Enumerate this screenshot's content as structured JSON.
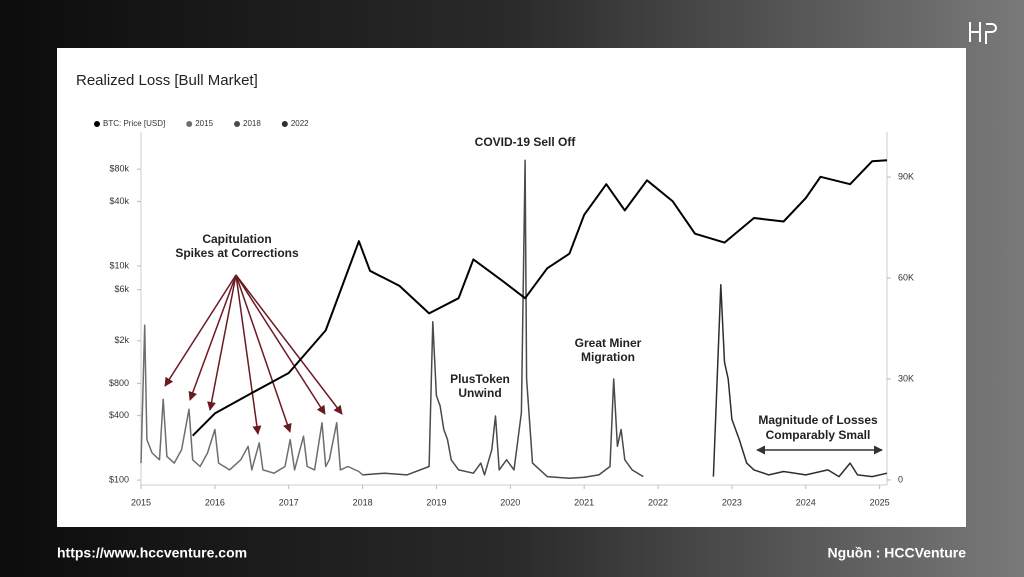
{
  "chart_data": {
    "type": "line",
    "title": "Realized Loss [Bull Market]",
    "xlim": [
      2015,
      2025.1
    ],
    "xticks": [
      2015,
      2016,
      2017,
      2018,
      2019,
      2020,
      2021,
      2022,
      2023,
      2024,
      2025
    ],
    "ylim": [
      90,
      178000
    ],
    "log_y": true,
    "yticks": [
      {
        "value": 100,
        "label": "$100"
      },
      {
        "value": 400,
        "label": "$400"
      },
      {
        "value": 800,
        "label": "$800"
      },
      {
        "value": 2000,
        "label": "$2k"
      },
      {
        "value": 6000,
        "label": "$6k"
      },
      {
        "value": 10000,
        "label": "$10k"
      },
      {
        "value": 40000,
        "label": "$40k"
      },
      {
        "value": 80000,
        "label": "$80k"
      }
    ],
    "y2lim": [
      -1500,
      103400
    ],
    "y2ticks": [
      0,
      {
        "value": 30000,
        "label": "30K"
      },
      {
        "value": 60000,
        "label": "60K"
      },
      {
        "value": 90000,
        "label": "90K"
      }
    ],
    "legend": "top-left",
    "series": [
      {
        "name": "BTC: Price [USD]",
        "color": "#000000",
        "x": [
          2015.7,
          2016.0,
          2016.5,
          2017.0,
          2017.5,
          2017.95,
          2018.1,
          2018.5,
          2018.9,
          2019.3,
          2019.5,
          2019.9,
          2020.2,
          2020.5,
          2020.8,
          2021.0,
          2021.3,
          2021.55,
          2021.85,
          2022.2,
          2022.5,
          2022.9,
          2023.3,
          2023.7,
          2024.0,
          2024.2,
          2024.6,
          2024.9,
          2025.1
        ],
        "values": [
          260,
          420,
          650,
          1000,
          2500,
          17000,
          9000,
          6500,
          3600,
          5000,
          11500,
          7200,
          5000,
          9500,
          13000,
          30000,
          58000,
          33000,
          63000,
          40000,
          20000,
          16500,
          28000,
          26000,
          43000,
          68000,
          58000,
          95000,
          97000
        ]
      },
      {
        "name": "2015",
        "color": "#6e6e6e",
        "axis": "y2",
        "x": [
          2015.0,
          2015.05,
          2015.08,
          2015.15,
          2015.25,
          2015.3,
          2015.35,
          2015.45,
          2015.55,
          2015.65,
          2015.7,
          2015.8,
          2015.9,
          2016.0,
          2016.05,
          2016.2,
          2016.35,
          2016.45,
          2016.5,
          2016.6,
          2016.65,
          2016.8,
          2016.95,
          2017.02,
          2017.08,
          2017.2,
          2017.25,
          2017.35,
          2017.45,
          2017.5,
          2017.55,
          2017.65,
          2017.7,
          2017.8,
          2017.95,
          2018.0
        ],
        "values": [
          5000,
          46000,
          12000,
          8000,
          6000,
          24000,
          7000,
          5000,
          9000,
          21000,
          6000,
          4000,
          8000,
          15000,
          5000,
          3000,
          6000,
          10000,
          3000,
          11000,
          3000,
          2000,
          4000,
          12000,
          3000,
          13000,
          4000,
          3000,
          17000,
          4000,
          6000,
          17000,
          3000,
          4000,
          2500,
          1500
        ]
      },
      {
        "name": "2018",
        "color": "#4a4a4a",
        "axis": "y2",
        "x": [
          2018.0,
          2018.3,
          2018.6,
          2018.9,
          2018.95,
          2019.0,
          2019.05,
          2019.1,
          2019.15,
          2019.2,
          2019.3,
          2019.5,
          2019.6,
          2019.65,
          2019.75,
          2019.8,
          2019.85,
          2019.95,
          2020.05,
          2020.15,
          2020.2,
          2020.22,
          2020.3,
          2020.5,
          2020.8,
          2021.0,
          2021.2,
          2021.35,
          2021.4,
          2021.45,
          2021.5,
          2021.55,
          2021.65,
          2021.8
        ],
        "values": [
          1500,
          2000,
          1500,
          4000,
          47000,
          25000,
          22000,
          15000,
          12000,
          6000,
          3000,
          2000,
          5000,
          1500,
          9000,
          19000,
          3000,
          6000,
          3000,
          20000,
          95000,
          30000,
          5000,
          1000,
          500,
          800,
          1500,
          4000,
          30000,
          10000,
          15000,
          6000,
          3000,
          1000
        ]
      },
      {
        "name": "2022",
        "color": "#2e2e2e",
        "axis": "y2",
        "x": [
          2022.75,
          2022.85,
          2022.9,
          2022.95,
          2023.0,
          2023.1,
          2023.2,
          2023.3,
          2023.5,
          2023.7,
          2024.0,
          2024.3,
          2024.45,
          2024.6,
          2024.7,
          2024.9,
          2025.1
        ],
        "values": [
          1000,
          58000,
          35000,
          30000,
          18000,
          12000,
          5000,
          3000,
          1500,
          2500,
          1500,
          3000,
          1000,
          5000,
          1500,
          1000,
          2000
        ]
      }
    ],
    "annotations": {
      "covid": "COVID-19 Sell Off",
      "capitulation": [
        "Capitulation",
        "Spikes at Corrections"
      ],
      "plustoken": [
        "PlusToken",
        "Unwind"
      ],
      "miner": [
        "Great Miner",
        "Migration"
      ],
      "magnitude": [
        "Magnitude of Losses",
        "Comparably Small"
      ]
    }
  },
  "footer": {
    "url": "https://www.hccventure.com",
    "source": "Nguồn : HCCVenture"
  }
}
